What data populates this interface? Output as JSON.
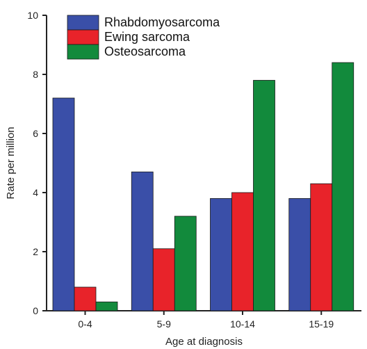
{
  "chart_data": {
    "type": "bar",
    "title": "",
    "xlabel": "Age at diagnosis",
    "ylabel": "Rate per million",
    "categories": [
      "0-4",
      "5-9",
      "10-14",
      "15-19"
    ],
    "series": [
      {
        "name": "Rhabdomyosarcoma",
        "color": "#3a4fa8",
        "values": [
          7.2,
          4.7,
          3.8,
          3.8
        ]
      },
      {
        "name": "Ewing sarcoma",
        "color": "#e8232a",
        "values": [
          0.8,
          2.1,
          4.0,
          4.3
        ]
      },
      {
        "name": "Osteosarcoma",
        "color": "#128a3c",
        "values": [
          0.3,
          3.2,
          7.8,
          8.4
        ]
      }
    ],
    "ylim": [
      0,
      10
    ],
    "yticks": [
      "0",
      "2",
      "4",
      "6",
      "8",
      "10"
    ],
    "legend_position": "top-left",
    "grid": false
  }
}
